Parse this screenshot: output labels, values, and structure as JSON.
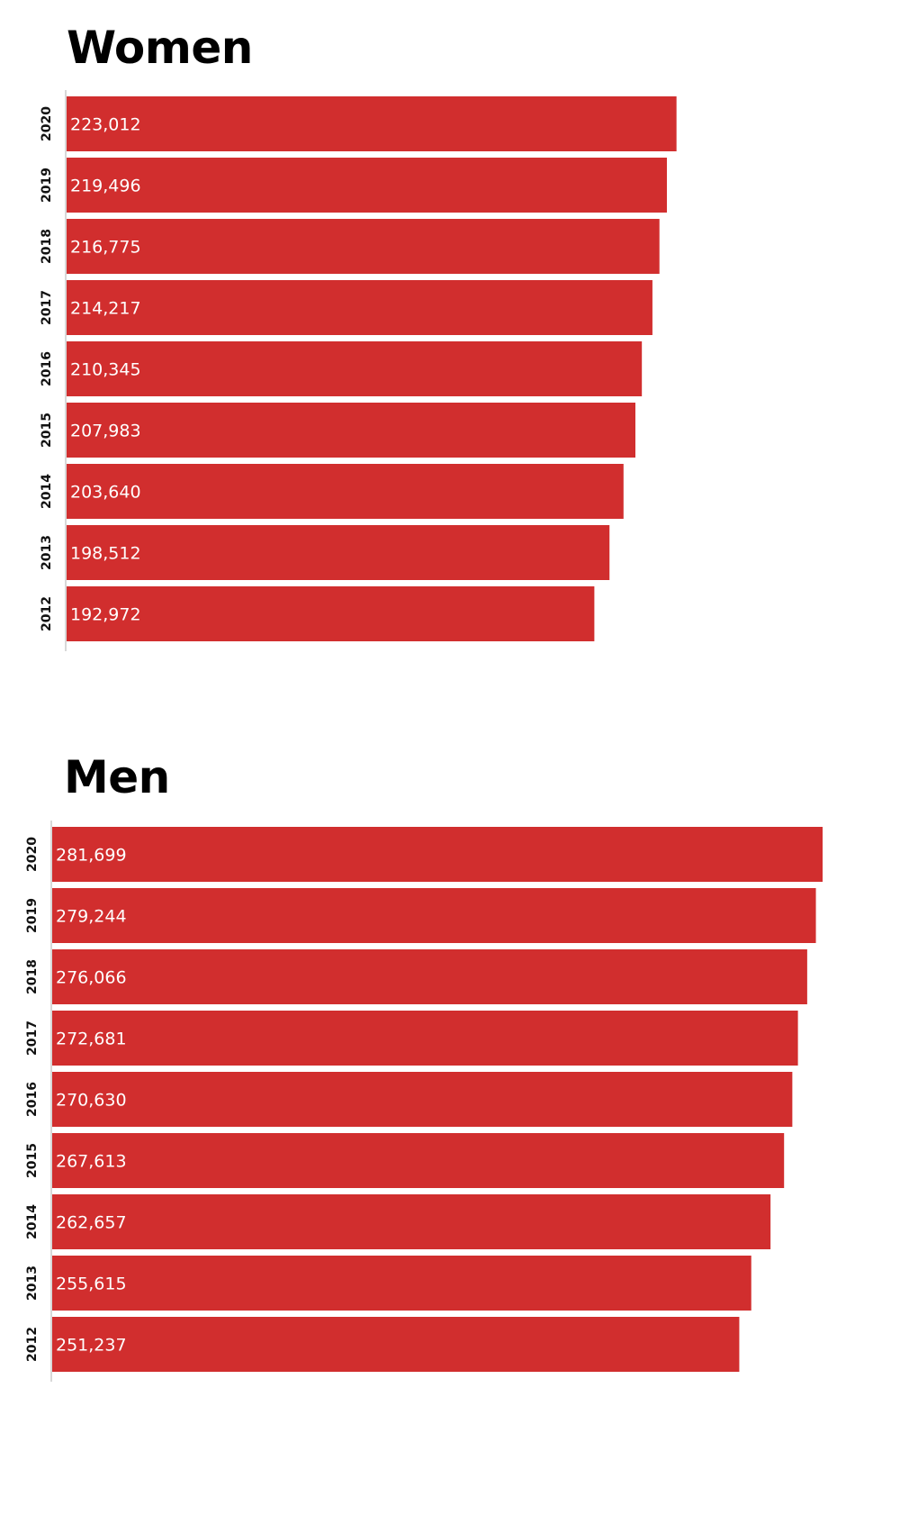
{
  "colors": {
    "bar": "#d12e2e",
    "axis": "#cccccc",
    "label_text": "#ffffff",
    "tick_text": "#111111"
  },
  "chart_data": [
    {
      "type": "bar",
      "orientation": "horizontal",
      "title": "Women",
      "categories": [
        "2020",
        "2019",
        "2018",
        "2017",
        "2016",
        "2015",
        "2014",
        "2013",
        "2012"
      ],
      "values": [
        223012,
        219496,
        216775,
        214217,
        210345,
        207983,
        203640,
        198512,
        192972
      ],
      "value_labels": [
        "223,012",
        "219,496",
        "216,775",
        "214,217",
        "210,345",
        "207,983",
        "203,640",
        "198,512",
        "192,972"
      ],
      "xlim": [
        0,
        282000
      ],
      "xlabel": "",
      "ylabel": "",
      "grid": false
    },
    {
      "type": "bar",
      "orientation": "horizontal",
      "title": "Men",
      "categories": [
        "2020",
        "2019",
        "2018",
        "2017",
        "2016",
        "2015",
        "2014",
        "2013",
        "2012"
      ],
      "values": [
        281699,
        279244,
        276066,
        272681,
        270630,
        267613,
        262657,
        255615,
        251237
      ],
      "value_labels": [
        "281,699",
        "279,244",
        "276,066",
        "272,681",
        "270,630",
        "267,613",
        "262,657",
        "255,615",
        "251,237"
      ],
      "xlim": [
        0,
        282000
      ],
      "xlabel": "",
      "ylabel": "",
      "grid": false
    }
  ]
}
